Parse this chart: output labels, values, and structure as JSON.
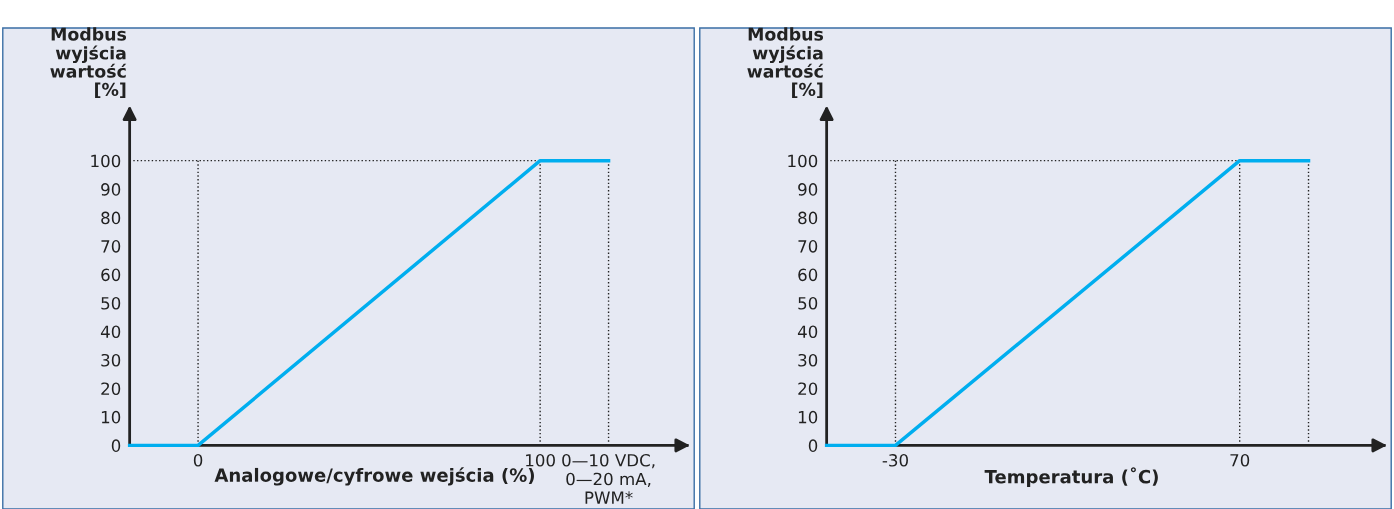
{
  "chart_data": [
    {
      "type": "line",
      "xlabel": "Analogowe/cyfrowe wejścia (%)",
      "ylabel": "Modbus\nwyjścia\nwartość\n[%]",
      "x": [
        -20,
        0,
        100,
        120
      ],
      "series": [
        {
          "color": "#00aeef",
          "values": [
            0,
            0,
            100,
            100
          ]
        }
      ],
      "xlim": [
        -20,
        143
      ],
      "ylim": [
        0,
        118
      ],
      "xticks": [
        0,
        100,
        {
          "value": 120,
          "label": "0—10 VDC,\n0—20 mA,\nPWM*"
        }
      ],
      "yticks": [
        0,
        10,
        20,
        30,
        40,
        50,
        60,
        70,
        80,
        90,
        100
      ],
      "ref_lines": [
        {
          "axis": "x",
          "value": 0,
          "line_style": "dotted",
          "color": "#222222"
        },
        {
          "axis": "x",
          "value": 100,
          "line_style": "dotted",
          "color": "#222222"
        },
        {
          "axis": "x",
          "value": 120,
          "line_style": "dotted",
          "color": "#222222"
        },
        {
          "axis": "y",
          "value": 100,
          "line_style": "dotted",
          "color": "#222222"
        }
      ],
      "grid": false,
      "marker": "none",
      "line_style": "solid"
    },
    {
      "type": "line",
      "xlabel": "Temperatura (˚C)",
      "ylabel": "Modbus\nwyjścia\nwartość\n[%]",
      "x": [
        -50,
        -30,
        70,
        90
      ],
      "series": [
        {
          "color": "#00aeef",
          "values": [
            0,
            0,
            100,
            100
          ]
        }
      ],
      "xlim": [
        -50,
        112
      ],
      "ylim": [
        0,
        118
      ],
      "xticks": [
        -30,
        70
      ],
      "yticks": [
        0,
        10,
        20,
        30,
        40,
        50,
        60,
        70,
        80,
        90,
        100
      ],
      "ref_lines": [
        {
          "axis": "x",
          "value": -30,
          "line_style": "dotted",
          "color": "#222222"
        },
        {
          "axis": "x",
          "value": 70,
          "line_style": "dotted",
          "color": "#222222"
        },
        {
          "axis": "x",
          "value": 90,
          "line_style": "dotted",
          "color": "#222222"
        },
        {
          "axis": "y",
          "value": 100,
          "line_style": "dotted",
          "color": "#222222"
        }
      ],
      "grid": false,
      "marker": "none",
      "line_style": "solid"
    }
  ]
}
